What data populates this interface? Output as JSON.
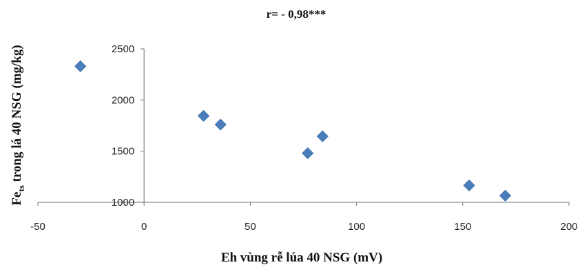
{
  "chart_data": {
    "type": "scatter",
    "title": "r= - 0,98***",
    "xlabel": "Eh vùng rễ lúa 40 NSG (mV)",
    "ylabel_main": "Fe",
    "ylabel_sub": "ts",
    "ylabel_rest": " trong lá 40 NSG (mg/kg)",
    "xlim": [
      -50,
      200
    ],
    "ylim": [
      1000,
      2500
    ],
    "x_ticks": [
      "-50",
      "0",
      "50",
      "100",
      "150",
      "200"
    ],
    "y_ticks": [
      "1000",
      "1500",
      "2000",
      "2500"
    ],
    "grid": false,
    "legend": "none",
    "marker_color": "#4a7ebb",
    "points": [
      {
        "x": -30,
        "y": 2330
      },
      {
        "x": 28,
        "y": 1845
      },
      {
        "x": 36,
        "y": 1760
      },
      {
        "x": 77,
        "y": 1480
      },
      {
        "x": 84,
        "y": 1645
      },
      {
        "x": 153,
        "y": 1165
      },
      {
        "x": 170,
        "y": 1065
      }
    ]
  }
}
